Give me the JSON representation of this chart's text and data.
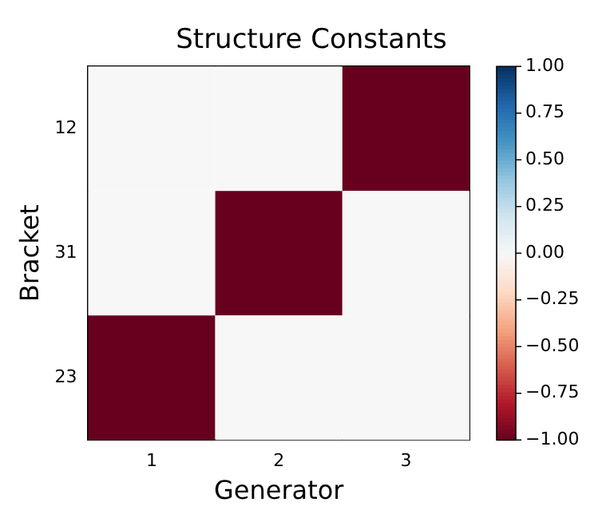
{
  "chart_data": {
    "type": "heatmap",
    "title": "Structure Constants",
    "xlabel": "Generator",
    "ylabel": "Bracket",
    "categories": [
      "1",
      "2",
      "3"
    ],
    "y_categories": [
      "12",
      "31",
      "23"
    ],
    "cells": [
      [
        0,
        0,
        -1
      ],
      [
        0,
        -1,
        0
      ],
      [
        -1,
        0,
        0
      ]
    ],
    "clim": [
      -1,
      1
    ],
    "cticks": [
      {
        "value": -1,
        "label": "−1.00"
      },
      {
        "value": -0.75,
        "label": "−0.75"
      },
      {
        "value": -0.5,
        "label": "−0.50"
      },
      {
        "value": -0.25,
        "label": "−0.25"
      },
      {
        "value": 0,
        "label": "0.00"
      },
      {
        "value": 0.25,
        "label": "0.25"
      },
      {
        "value": 0.5,
        "label": "0.50"
      },
      {
        "value": 0.75,
        "label": "0.75"
      },
      {
        "value": 1,
        "label": "1.00"
      }
    ]
  }
}
